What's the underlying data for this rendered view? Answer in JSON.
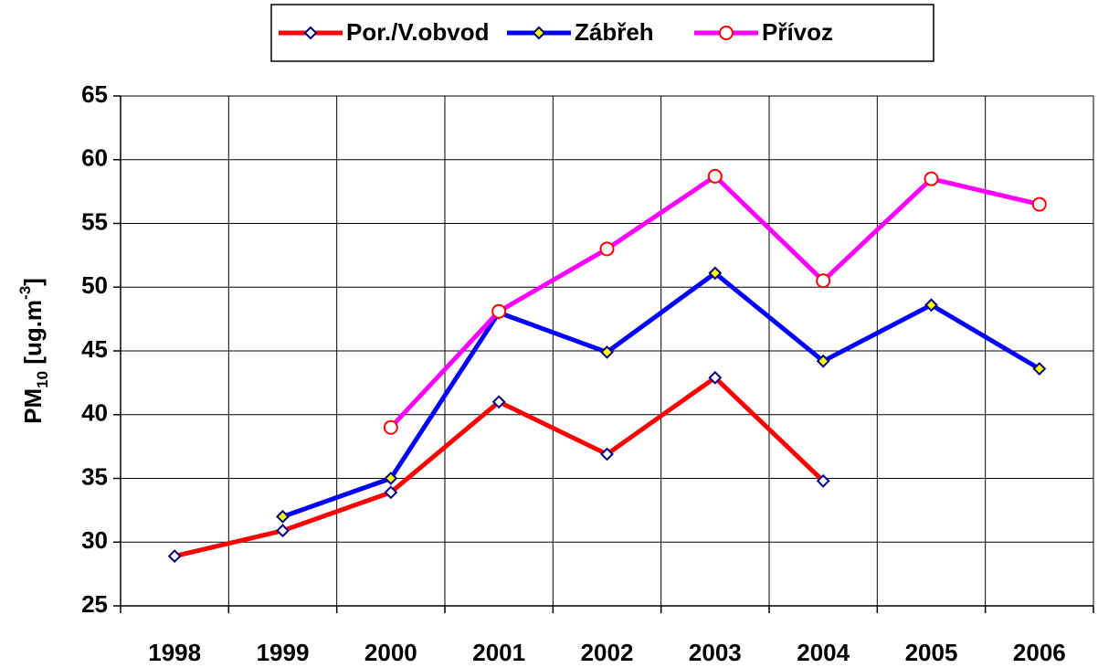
{
  "chart_data": {
    "type": "line",
    "y_label": {
      "parts": [
        "PM",
        "10",
        " [ug.m",
        "-3",
        "]"
      ]
    },
    "categories": [
      "1998",
      "1999",
      "2000",
      "2001",
      "2002",
      "2003",
      "2004",
      "2005",
      "2006"
    ],
    "series": [
      {
        "name": "Por./V.obvod",
        "color": "#ff0000",
        "marker": "diamond",
        "marker_fill": "#ffffff",
        "marker_stroke": "#000080",
        "values": [
          28.9,
          30.9,
          33.9,
          41,
          36.9,
          42.9,
          34.8,
          null,
          null
        ]
      },
      {
        "name": "Zábřeh",
        "color": "#0000ff",
        "marker": "diamond",
        "marker_fill": "#ffff00",
        "marker_stroke": "#000080",
        "values": [
          null,
          32,
          35,
          48,
          44.9,
          51.1,
          44.2,
          48.6,
          43.6
        ]
      },
      {
        "name": "Přívoz",
        "color": "#ff00ff",
        "marker": "circle",
        "marker_fill": "#ffffff",
        "marker_stroke": "#ff0000",
        "values": [
          null,
          null,
          39,
          48.1,
          53,
          58.7,
          50.5,
          58.5,
          56.5
        ]
      }
    ],
    "ylim": [
      25,
      65
    ],
    "yticks": [
      25,
      30,
      35,
      40,
      45,
      50,
      55,
      60,
      65
    ],
    "grid": true,
    "legend": "top"
  }
}
